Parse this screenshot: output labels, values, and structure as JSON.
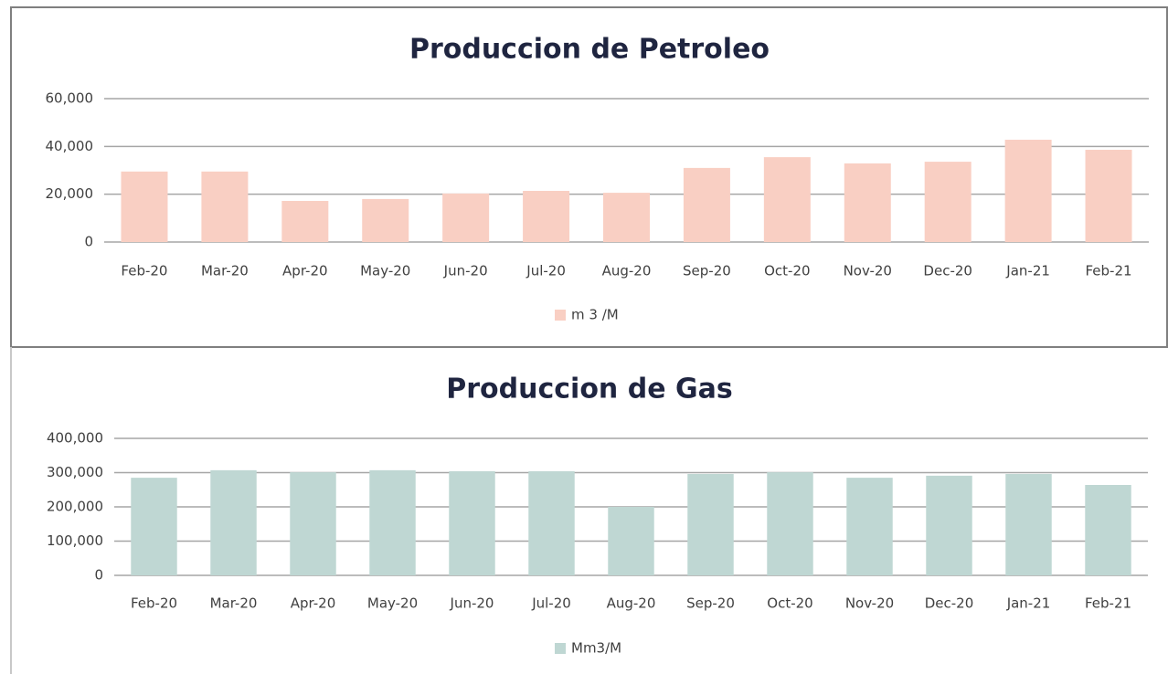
{
  "chart_data": [
    {
      "type": "bar",
      "title": "Produccion de Petroleo",
      "categories": [
        "Feb-20",
        "Mar-20",
        "Apr-20",
        "May-20",
        "Jun-20",
        "Jul-20",
        "Aug-20",
        "Sep-20",
        "Oct-20",
        "Nov-20",
        "Dec-20",
        "Jan-21",
        "Feb-21"
      ],
      "series": [
        {
          "name": "m 3 /M",
          "color": "#f9cfc3",
          "values": [
            29500,
            29500,
            17200,
            18000,
            20300,
            21400,
            20600,
            31000,
            35500,
            32900,
            33600,
            42800,
            38600
          ]
        }
      ],
      "ylim": [
        0,
        60000
      ],
      "yticks": [
        0,
        {
          "value": 20000,
          "label": "20,000"
        },
        {
          "value": 40000,
          "label": "40,000"
        },
        {
          "value": 60000,
          "label": "60,000"
        }
      ],
      "grid": true,
      "legend": "bottom"
    },
    {
      "type": "bar",
      "title": "Produccion de Gas",
      "categories": [
        "Feb-20",
        "Mar-20",
        "Apr-20",
        "May-20",
        "Jun-20",
        "Jul-20",
        "Aug-20",
        "Sep-20",
        "Oct-20",
        "Nov-20",
        "Dec-20",
        "Jan-21",
        "Feb-21"
      ],
      "series": [
        {
          "name": "Mm3/M",
          "color": "#bfd7d3",
          "values": [
            285000,
            307000,
            301000,
            307000,
            304000,
            304000,
            200000,
            296000,
            301000,
            285000,
            291000,
            296000,
            264000
          ]
        }
      ],
      "ylim": [
        0,
        400000
      ],
      "yticks": [
        0,
        {
          "value": 100000,
          "label": "100,000"
        },
        {
          "value": 200000,
          "label": "200,000"
        },
        {
          "value": 300000,
          "label": "300,000"
        },
        {
          "value": 400000,
          "label": "400,000"
        }
      ],
      "grid": true,
      "legend": "bottom"
    }
  ]
}
